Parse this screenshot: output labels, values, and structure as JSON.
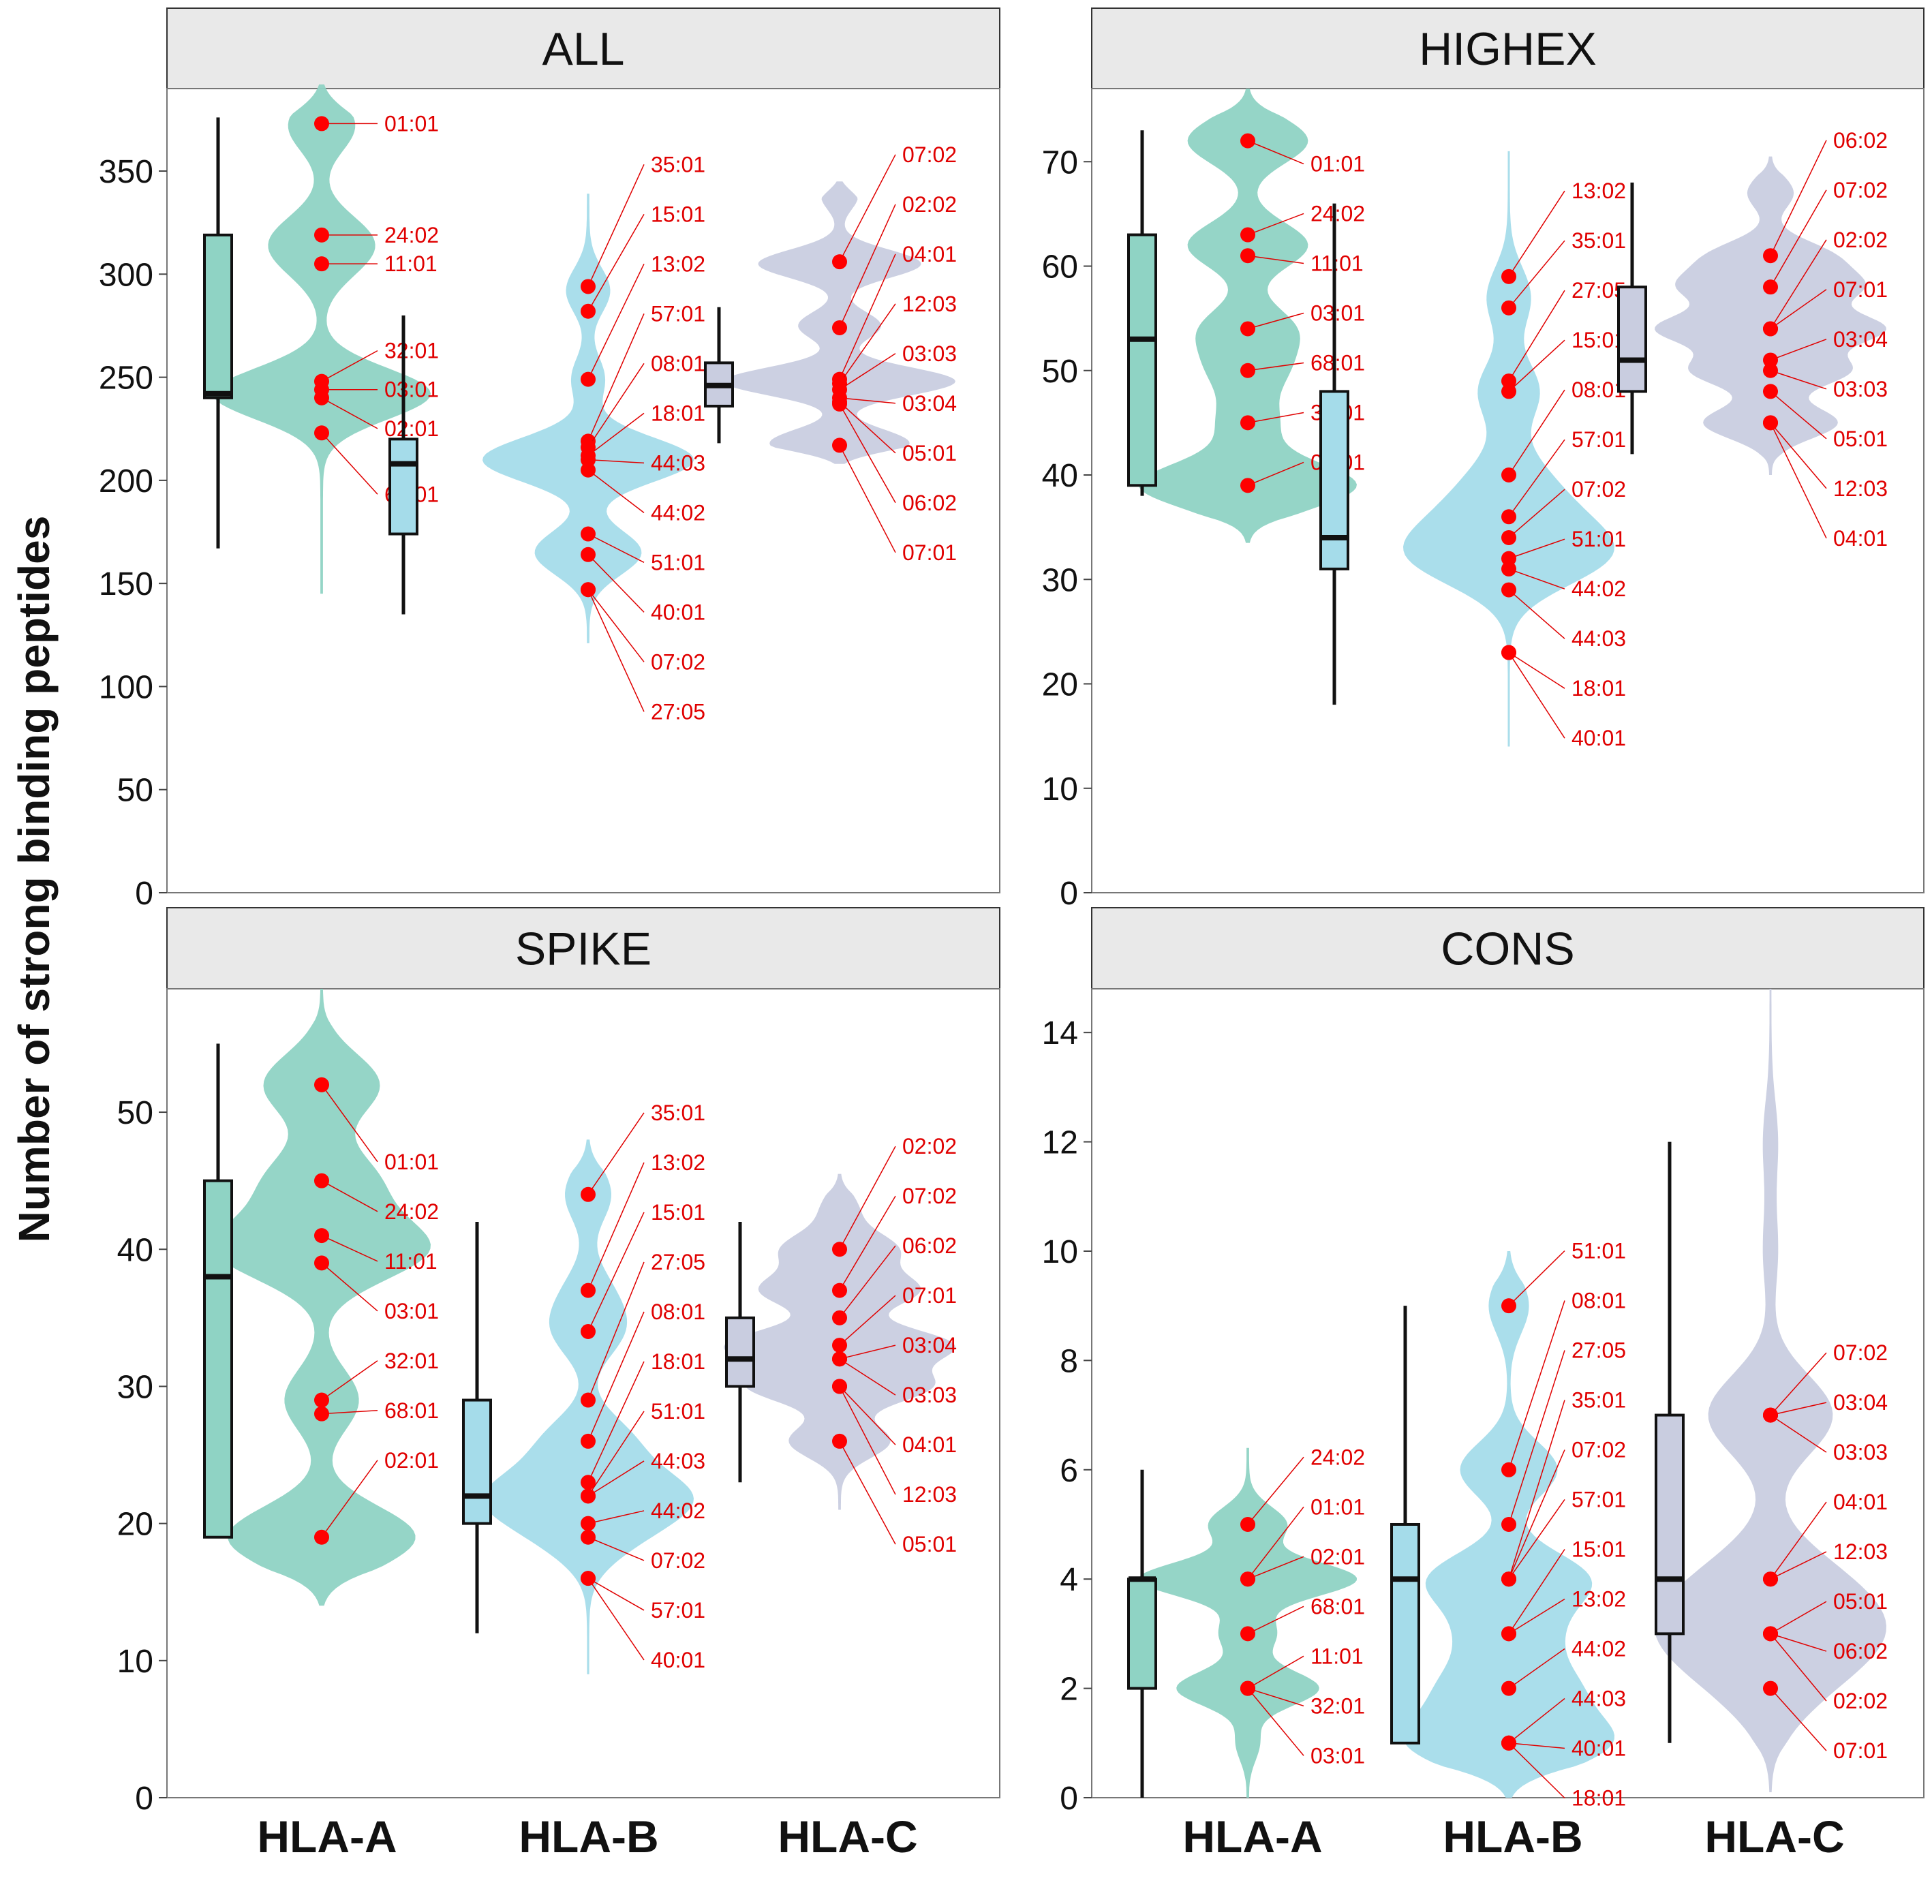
{
  "y_axis_label": "Number of strong binding peptides",
  "x_categories": [
    "HLA-A",
    "HLA-B",
    "HLA-C"
  ],
  "colors": {
    "HLA-A": "#8fd3c4",
    "HLA-B": "#a5dcea",
    "HLA-C": "#c9cde0",
    "point": "#ff0000",
    "label": "#e00000",
    "strip": "#e9e9e9",
    "frame": "#555555"
  },
  "chart_data": [
    {
      "type": "violin+box",
      "title": "ALL",
      "ylim": [
        0,
        390
      ],
      "yticks": [
        0,
        50,
        100,
        150,
        200,
        250,
        300,
        350
      ],
      "groups": [
        {
          "name": "HLA-A",
          "box": {
            "min": 167,
            "q1": 240,
            "median": 242,
            "q3": 319,
            "max": 376
          },
          "violin": {
            "min": 145,
            "max": 392,
            "modes": [
              [
                242,
                1.0
              ],
              [
                318,
                0.35
              ],
              [
                372,
                0.3
              ],
              [
                305,
                0.2
              ]
            ]
          },
          "points": [
            {
              "label": "01:01",
              "value": 373
            },
            {
              "label": "24:02",
              "value": 319
            },
            {
              "label": "11:01",
              "value": 305
            },
            {
              "label": "32:01",
              "value": 248
            },
            {
              "label": "03:01",
              "value": 244
            },
            {
              "label": "02:01",
              "value": 240
            },
            {
              "label": "68:01",
              "value": 223
            }
          ]
        },
        {
          "name": "HLA-B",
          "box": {
            "min": 135,
            "q1": 174,
            "median": 208,
            "q3": 220,
            "max": 280
          },
          "violin": {
            "min": 121,
            "max": 339,
            "modes": [
              [
                210,
                1.0
              ],
              [
                165,
                0.5
              ],
              [
                292,
                0.2
              ],
              [
                249,
                0.15
              ]
            ]
          },
          "points": [
            {
              "label": "35:01",
              "value": 294
            },
            {
              "label": "15:01",
              "value": 282
            },
            {
              "label": "13:02",
              "value": 249
            },
            {
              "label": "57:01",
              "value": 219
            },
            {
              "label": "08:01",
              "value": 216
            },
            {
              "label": "18:01",
              "value": 212
            },
            {
              "label": "44:03",
              "value": 210
            },
            {
              "label": "44:02",
              "value": 205
            },
            {
              "label": "51:01",
              "value": 174
            },
            {
              "label": "40:01",
              "value": 164
            },
            {
              "label": "07:02",
              "value": 147
            },
            {
              "label": "27:05",
              "value": 147
            }
          ]
        },
        {
          "name": "HLA-C",
          "box": {
            "min": 218,
            "q1": 236,
            "median": 246,
            "q3": 257,
            "max": 284
          },
          "violin": {
            "min": 208,
            "max": 345,
            "modes": [
              [
                248,
                1.0
              ],
              [
                305,
                0.7
              ],
              [
                218,
                0.6
              ],
              [
                275,
                0.35
              ],
              [
                338,
                0.15
              ]
            ]
          },
          "points": [
            {
              "label": "07:02",
              "value": 306
            },
            {
              "label": "02:02",
              "value": 274
            },
            {
              "label": "04:01",
              "value": 249
            },
            {
              "label": "12:03",
              "value": 247
            },
            {
              "label": "03:03",
              "value": 244
            },
            {
              "label": "03:04",
              "value": 240
            },
            {
              "label": "05:01",
              "value": 238
            },
            {
              "label": "06:02",
              "value": 237
            },
            {
              "label": "07:01",
              "value": 217
            }
          ]
        }
      ]
    },
    {
      "type": "violin+box",
      "title": "HIGHEX",
      "ylim": [
        0,
        77
      ],
      "yticks": [
        0,
        10,
        20,
        30,
        40,
        50,
        60,
        70
      ],
      "groups": [
        {
          "name": "HLA-A",
          "box": {
            "min": 38,
            "q1": 39,
            "median": 53,
            "q3": 63,
            "max": 73
          },
          "violin": {
            "min": 33.5,
            "max": 77,
            "modes": [
              [
                39,
                1.0
              ],
              [
                72,
                0.55
              ],
              [
                62,
                0.55
              ],
              [
                54,
                0.4
              ],
              [
                50,
                0.3
              ],
              [
                45,
                0.25
              ]
            ]
          },
          "points": [
            {
              "label": "01:01",
              "value": 72
            },
            {
              "label": "24:02",
              "value": 63
            },
            {
              "label": "11:01",
              "value": 61
            },
            {
              "label": "03:01",
              "value": 54
            },
            {
              "label": "68:01",
              "value": 50
            },
            {
              "label": "32:01",
              "value": 45
            },
            {
              "label": "02:01",
              "value": 39
            }
          ]
        },
        {
          "name": "HLA-B",
          "box": {
            "min": 18,
            "q1": 31,
            "median": 34,
            "q3": 48,
            "max": 66
          },
          "violin": {
            "min": 14,
            "max": 71,
            "modes": [
              [
                32,
                1.0
              ],
              [
                36,
                0.5
              ],
              [
                48,
                0.35
              ],
              [
                57,
                0.25
              ],
              [
                40,
                0.3
              ]
            ]
          },
          "points": [
            {
              "label": "13:02",
              "value": 59
            },
            {
              "label": "35:01",
              "value": 56
            },
            {
              "label": "27:05",
              "value": 49
            },
            {
              "label": "15:01",
              "value": 48
            },
            {
              "label": "08:01",
              "value": 40
            },
            {
              "label": "57:01",
              "value": 36
            },
            {
              "label": "07:02",
              "value": 34
            },
            {
              "label": "51:01",
              "value": 32
            },
            {
              "label": "44:02",
              "value": 31
            },
            {
              "label": "44:03",
              "value": 29
            },
            {
              "label": "18:01",
              "value": 23
            },
            {
              "label": "40:01",
              "value": 23
            }
          ]
        },
        {
          "name": "HLA-C",
          "box": {
            "min": 42,
            "q1": 48,
            "median": 51,
            "q3": 58,
            "max": 68
          },
          "violin": {
            "min": 40,
            "max": 70.5,
            "modes": [
              [
                54,
                1.0
              ],
              [
                58,
                0.75
              ],
              [
                50,
                0.7
              ],
              [
                45,
                0.6
              ],
              [
                61,
                0.5
              ],
              [
                67,
                0.2
              ]
            ]
          },
          "points": [
            {
              "label": "06:02",
              "value": 61
            },
            {
              "label": "07:02",
              "value": 58
            },
            {
              "label": "02:02",
              "value": 54
            },
            {
              "label": "07:01",
              "value": 54
            },
            {
              "label": "03:04",
              "value": 51
            },
            {
              "label": "03:03",
              "value": 50
            },
            {
              "label": "05:01",
              "value": 48
            },
            {
              "label": "12:03",
              "value": 45
            },
            {
              "label": "04:01",
              "value": 45
            }
          ]
        }
      ]
    },
    {
      "type": "violin+box",
      "title": "SPIKE",
      "ylim": [
        0,
        59
      ],
      "yticks": [
        0,
        10,
        20,
        30,
        40,
        50
      ],
      "groups": [
        {
          "name": "HLA-A",
          "box": {
            "min": 19,
            "q1": 19,
            "median": 38,
            "q3": 45,
            "max": 55
          },
          "violin": {
            "min": 14,
            "max": 59,
            "modes": [
              [
                19,
                0.9
              ],
              [
                40,
                1.0
              ],
              [
                52,
                0.55
              ],
              [
                29,
                0.35
              ],
              [
                45,
                0.5
              ]
            ]
          },
          "points": [
            {
              "label": "01:01",
              "value": 52
            },
            {
              "label": "24:02",
              "value": 45
            },
            {
              "label": "11:01",
              "value": 41
            },
            {
              "label": "03:01",
              "value": 39
            },
            {
              "label": "32:01",
              "value": 29
            },
            {
              "label": "68:01",
              "value": 28
            },
            {
              "label": "02:01",
              "value": 19
            }
          ]
        },
        {
          "name": "HLA-B",
          "box": {
            "min": 12,
            "q1": 20,
            "median": 22,
            "q3": 29,
            "max": 42
          },
          "violin": {
            "min": 9,
            "max": 48,
            "modes": [
              [
                22,
                1.0
              ],
              [
                26,
                0.45
              ],
              [
                34,
                0.35
              ],
              [
                44,
                0.25
              ],
              [
                37,
                0.2
              ],
              [
                19,
                0.4
              ]
            ]
          },
          "points": [
            {
              "label": "35:01",
              "value": 44
            },
            {
              "label": "13:02",
              "value": 37
            },
            {
              "label": "15:01",
              "value": 34
            },
            {
              "label": "27:05",
              "value": 29
            },
            {
              "label": "08:01",
              "value": 26
            },
            {
              "label": "18:01",
              "value": 23
            },
            {
              "label": "51:01",
              "value": 22
            },
            {
              "label": "44:03",
              "value": 22
            },
            {
              "label": "44:02",
              "value": 20
            },
            {
              "label": "07:02",
              "value": 19
            },
            {
              "label": "57:01",
              "value": 16
            },
            {
              "label": "40:01",
              "value": 16
            }
          ]
        },
        {
          "name": "HLA-C",
          "box": {
            "min": 23,
            "q1": 30,
            "median": 32,
            "q3": 35,
            "max": 42
          },
          "violin": {
            "min": 21,
            "max": 45.5,
            "modes": [
              [
                33,
                1.0
              ],
              [
                37,
                0.7
              ],
              [
                30,
                0.8
              ],
              [
                40,
                0.5
              ],
              [
                26,
                0.45
              ],
              [
                43,
                0.15
              ]
            ]
          },
          "points": [
            {
              "label": "02:02",
              "value": 40
            },
            {
              "label": "07:02",
              "value": 37
            },
            {
              "label": "06:02",
              "value": 35
            },
            {
              "label": "07:01",
              "value": 33
            },
            {
              "label": "03:04",
              "value": 32
            },
            {
              "label": "03:03",
              "value": 32
            },
            {
              "label": "04:01",
              "value": 30
            },
            {
              "label": "12:03",
              "value": 30
            },
            {
              "label": "05:01",
              "value": 26
            }
          ]
        }
      ]
    },
    {
      "type": "violin+box",
      "title": "CONS",
      "ylim": [
        0,
        14.8
      ],
      "yticks": [
        0,
        2,
        4,
        6,
        8,
        10,
        12,
        14
      ],
      "groups": [
        {
          "name": "HLA-A",
          "box": {
            "min": 0,
            "q1": 2,
            "median": 4,
            "q3": 4,
            "max": 6
          },
          "violin": {
            "min": 0,
            "max": 6.4,
            "modes": [
              [
                4,
                1.0
              ],
              [
                2,
                0.65
              ],
              [
                5,
                0.35
              ],
              [
                3,
                0.25
              ],
              [
                1,
                0.1
              ]
            ]
          },
          "points": [
            {
              "label": "24:02",
              "value": 5
            },
            {
              "label": "01:01",
              "value": 4
            },
            {
              "label": "02:01",
              "value": 4
            },
            {
              "label": "68:01",
              "value": 3
            },
            {
              "label": "11:01",
              "value": 2
            },
            {
              "label": "32:01",
              "value": 2
            },
            {
              "label": "03:01",
              "value": 2
            }
          ]
        },
        {
          "name": "HLA-B",
          "box": {
            "min": 1,
            "q1": 1,
            "median": 4,
            "q3": 5,
            "max": 9
          },
          "violin": {
            "min": 0,
            "max": 10,
            "modes": [
              [
                1,
                1.0
              ],
              [
                4,
                0.8
              ],
              [
                2,
                0.6
              ],
              [
                6,
                0.5
              ],
              [
                3,
                0.4
              ],
              [
                9,
                0.2
              ]
            ]
          },
          "points": [
            {
              "label": "51:01",
              "value": 9
            },
            {
              "label": "08:01",
              "value": 6
            },
            {
              "label": "27:05",
              "value": 5
            },
            {
              "label": "35:01",
              "value": 4
            },
            {
              "label": "07:02",
              "value": 4
            },
            {
              "label": "57:01",
              "value": 4
            },
            {
              "label": "15:01",
              "value": 3
            },
            {
              "label": "13:02",
              "value": 3
            },
            {
              "label": "44:02",
              "value": 2
            },
            {
              "label": "44:03",
              "value": 1
            },
            {
              "label": "40:01",
              "value": 1
            },
            {
              "label": "18:01",
              "value": 1
            }
          ]
        },
        {
          "name": "HLA-C",
          "box": {
            "min": 1,
            "q1": 3,
            "median": 4,
            "q3": 7,
            "max": 12
          },
          "violin": {
            "min": 0.1,
            "max": 14.8,
            "modes": [
              [
                3,
                1.0
              ],
              [
                7,
                0.75
              ],
              [
                4,
                0.6
              ],
              [
                2,
                0.4
              ],
              [
                12,
                0.08
              ],
              [
                10,
                0.08
              ]
            ]
          },
          "points": [
            {
              "label": "07:02",
              "value": 7
            },
            {
              "label": "03:04",
              "value": 7
            },
            {
              "label": "03:03",
              "value": 7
            },
            {
              "label": "04:01",
              "value": 4
            },
            {
              "label": "12:03",
              "value": 4
            },
            {
              "label": "05:01",
              "value": 3
            },
            {
              "label": "06:02",
              "value": 3
            },
            {
              "label": "02:02",
              "value": 3
            },
            {
              "label": "07:01",
              "value": 2
            }
          ]
        }
      ]
    }
  ]
}
